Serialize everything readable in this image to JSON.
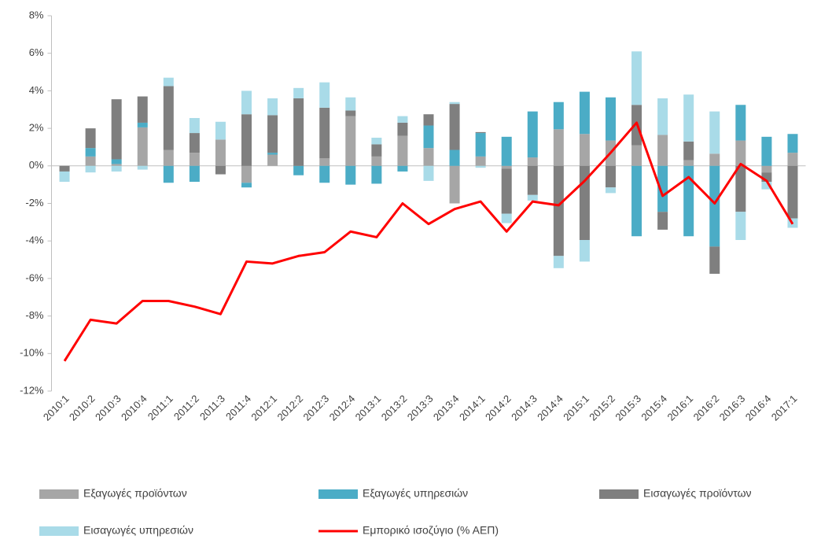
{
  "chart_data": {
    "type": "bar",
    "categories": [
      "2010:1",
      "2010:2",
      "2010:3",
      "2010:4",
      "2011:1",
      "2011:2",
      "2011:3",
      "2011:4",
      "2012:1",
      "2012:2",
      "2012:3",
      "2012:4",
      "2013:1",
      "2013:2",
      "2013:3",
      "2013:4",
      "2014:1",
      "2014:2",
      "2014:3",
      "2014:4",
      "2015:1",
      "2015:2",
      "2015:3",
      "2015:4",
      "2016:1",
      "2016:2",
      "2016:3",
      "2016:4",
      "2017:1"
    ],
    "series": [
      {
        "name": "Εξαγωγές προϊόντων",
        "type": "bar",
        "color": "#a6a6a6",
        "values": [
          0,
          0.5,
          0.1,
          2.05,
          0.85,
          0.7,
          1.4,
          -0.9,
          0.6,
          0,
          0.4,
          2.65,
          0.5,
          1.6,
          0.95,
          -2.0,
          0.5,
          -0.15,
          0.45,
          1.95,
          1.7,
          1.35,
          1.1,
          1.65,
          0.3,
          0.65,
          1.35,
          -0.35,
          0.7
        ]
      },
      {
        "name": "Εξαγωγές υπηρεσιών",
        "type": "bar",
        "color": "#4bacc6",
        "values": [
          0,
          0.45,
          0.25,
          0.25,
          -0.9,
          -0.85,
          0,
          -0.25,
          0.1,
          -0.5,
          -0.9,
          -1.0,
          -0.95,
          -0.3,
          1.2,
          0.85,
          1.25,
          1.55,
          2.45,
          1.45,
          2.25,
          2.3,
          -3.75,
          -2.45,
          -3.75,
          -4.3,
          1.9,
          1.55,
          1.0
        ]
      },
      {
        "name": "Εισαγωγές προϊόντων",
        "type": "bar",
        "color": "#7f7f7f",
        "values": [
          -0.3,
          1.05,
          3.2,
          1.4,
          3.4,
          1.05,
          -0.45,
          2.75,
          2.0,
          3.6,
          2.7,
          0.3,
          0.65,
          0.7,
          0.6,
          2.45,
          0.05,
          -2.4,
          -1.55,
          -4.8,
          -3.95,
          -1.15,
          2.15,
          -0.95,
          1.0,
          -1.45,
          -2.45,
          -0.5,
          -2.8
        ]
      },
      {
        "name": "Εισαγωγές υπηρεσιών",
        "type": "bar",
        "color": "#a9dbe8",
        "values": [
          -0.55,
          -0.35,
          -0.3,
          -0.2,
          0.45,
          0.8,
          0.95,
          1.25,
          0.9,
          0.55,
          1.35,
          0.7,
          0.35,
          0.35,
          -0.8,
          0.1,
          -0.1,
          -0.5,
          -0.3,
          -0.65,
          -1.15,
          -0.3,
          2.85,
          1.95,
          2.5,
          2.25,
          -1.5,
          -0.4,
          -0.5
        ]
      },
      {
        "name": "Εμπορικό ισοζύγιο (% ΑΕΠ)",
        "type": "line",
        "color": "#ff0000",
        "values": [
          -10.4,
          -8.2,
          -8.4,
          -7.2,
          -7.2,
          -7.5,
          -7.9,
          -5.1,
          -5.2,
          -4.8,
          -4.6,
          -3.5,
          -3.8,
          -2.0,
          -3.1,
          -2.3,
          -1.9,
          -3.5,
          -1.9,
          -2.1,
          -0.8,
          0.7,
          2.3,
          -1.6,
          -0.6,
          -2.0,
          0.1,
          -0.8,
          -3.1
        ]
      }
    ],
    "ylim": [
      -12,
      8
    ],
    "yticks": [
      {
        "value": -12,
        "label": "-12%"
      },
      {
        "value": -10,
        "label": "-10%"
      },
      {
        "value": -8,
        "label": "-8%"
      },
      {
        "value": -6,
        "label": "-6%"
      },
      {
        "value": -4,
        "label": "-4%"
      },
      {
        "value": -2,
        "label": "-2%"
      },
      {
        "value": 0,
        "label": "0%"
      },
      {
        "value": 2,
        "label": "2%"
      },
      {
        "value": 4,
        "label": "4%"
      },
      {
        "value": 6,
        "label": "6%"
      },
      {
        "value": 8,
        "label": "8%"
      }
    ],
    "grid": false
  }
}
